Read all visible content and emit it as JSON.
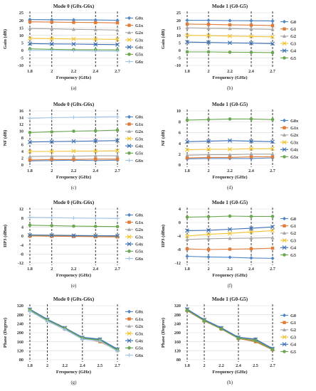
{
  "figure": {
    "colors": {
      "G0": "#4f86c6",
      "G1": "#e07b39",
      "G2": "#a5a5a5",
      "G3": "#f1c232",
      "G4": "#3c6eb4",
      "G5": "#6aa84f",
      "G6": "#9fc5e8"
    }
  },
  "chart_data": [
    {
      "type": "line",
      "panel": "(a)",
      "title": "Mode 0 (G0x-G6x)",
      "xlabel": "Frequency (GHz)",
      "ylabel": "Gain (dB)",
      "categories": [
        "1.8",
        "2",
        "2.2",
        "2.4",
        "2.7"
      ],
      "dashed_verticals": [
        "1.8",
        "2",
        "2.4",
        "2.7"
      ],
      "ylim": [
        -10,
        25
      ],
      "yticks": [
        -10,
        -5,
        0,
        5,
        10,
        15,
        20,
        25
      ],
      "series": [
        {
          "name": "G0x",
          "color": "#4f86c6",
          "marker": "diamond",
          "values": [
            20.5,
            20.4,
            20.3,
            20.2,
            20.0
          ]
        },
        {
          "name": "G1x",
          "color": "#e07b39",
          "marker": "square",
          "values": [
            19.0,
            18.8,
            18.6,
            18.5,
            18.3
          ]
        },
        {
          "name": "G2x",
          "color": "#a5a5a5",
          "marker": "triangle",
          "values": [
            14.5,
            14.3,
            14.0,
            13.8,
            13.5
          ]
        },
        {
          "name": "G3x",
          "color": "#f1c232",
          "marker": "x",
          "values": [
            8.0,
            7.8,
            7.6,
            7.5,
            7.3
          ]
        },
        {
          "name": "G4x",
          "color": "#3c6eb4",
          "marker": "x",
          "values": [
            4.5,
            4.3,
            4.2,
            4.0,
            3.8
          ]
        },
        {
          "name": "G5x",
          "color": "#6aa84f",
          "marker": "circle",
          "values": [
            1.0,
            0.7,
            0.5,
            0.4,
            0.3
          ]
        },
        {
          "name": "G6x",
          "color": "#9fc5e8",
          "marker": "plus",
          "values": [
            0.0,
            0.0,
            -0.3,
            -0.5,
            -0.6
          ]
        }
      ]
    },
    {
      "type": "line",
      "panel": "(b)",
      "title": "Mode 1 (G0-G5)",
      "xlabel": "Frequency (GHz)",
      "ylabel": "Gain (dB)",
      "categories": [
        "1.8",
        "2",
        "2.2",
        "2.4",
        "2.7"
      ],
      "dashed_verticals": [
        "1.8",
        "2",
        "2.4",
        "2.7"
      ],
      "ylim": [
        -10,
        25
      ],
      "yticks": [
        -10,
        -5,
        0,
        5,
        10,
        15,
        20,
        25
      ],
      "series": [
        {
          "name": "G0",
          "color": "#4f86c6",
          "marker": "diamond",
          "values": [
            20.0,
            20.0,
            19.8,
            19.7,
            19.5
          ]
        },
        {
          "name": "G1",
          "color": "#e07b39",
          "marker": "square",
          "values": [
            17.5,
            17.3,
            17.0,
            16.8,
            16.5
          ]
        },
        {
          "name": "G2",
          "color": "#a5a5a5",
          "marker": "triangle",
          "values": [
            15.0,
            14.7,
            14.5,
            14.2,
            14.0
          ]
        },
        {
          "name": "G3",
          "color": "#f1c232",
          "marker": "x",
          "values": [
            10.0,
            9.8,
            9.5,
            9.3,
            9.0
          ]
        },
        {
          "name": "G4",
          "color": "#3c6eb4",
          "marker": "x",
          "values": [
            5.5,
            5.3,
            5.0,
            4.8,
            4.5
          ]
        },
        {
          "name": "G5",
          "color": "#6aa84f",
          "marker": "circle",
          "values": [
            -1.0,
            -1.0,
            -1.2,
            -1.3,
            -1.5
          ]
        }
      ]
    },
    {
      "type": "line",
      "panel": "(c)",
      "title": "Mode 0 (G0x-G6x)",
      "xlabel": "Frequency (GHz)",
      "ylabel": "NF (dB)",
      "categories": [
        "1.8",
        "2",
        "2.2",
        "2.4",
        "2.7"
      ],
      "dashed_verticals": [
        "1.8",
        "2",
        "2.4",
        "2.7"
      ],
      "ylim": [
        0,
        16
      ],
      "yticks": [
        0,
        2,
        4,
        6,
        8,
        10,
        12,
        14,
        16
      ],
      "series": [
        {
          "name": "G0x",
          "color": "#4f86c6",
          "marker": "diamond",
          "values": [
            1.2,
            1.3,
            1.4,
            1.3,
            1.4
          ]
        },
        {
          "name": "G1x",
          "color": "#e07b39",
          "marker": "square",
          "values": [
            1.5,
            1.6,
            1.6,
            1.7,
            1.7
          ]
        },
        {
          "name": "G2x",
          "color": "#a5a5a5",
          "marker": "triangle",
          "values": [
            2.5,
            2.6,
            2.6,
            2.7,
            2.7
          ]
        },
        {
          "name": "G3x",
          "color": "#f1c232",
          "marker": "x",
          "values": [
            4.0,
            4.0,
            4.1,
            4.1,
            4.2
          ]
        },
        {
          "name": "G4x",
          "color": "#3c6eb4",
          "marker": "x",
          "values": [
            6.8,
            6.9,
            7.0,
            7.1,
            7.2
          ]
        },
        {
          "name": "G5x",
          "color": "#6aa84f",
          "marker": "circle",
          "values": [
            9.6,
            9.8,
            10.0,
            10.1,
            10.3
          ]
        },
        {
          "name": "G6x",
          "color": "#9fc5e8",
          "marker": "plus",
          "values": [
            13.8,
            14.0,
            14.1,
            14.2,
            14.3
          ]
        }
      ]
    },
    {
      "type": "line",
      "panel": "(d)",
      "title": "Mode 1 (G0-G5)",
      "xlabel": "Frequency (GHz)",
      "ylabel": "NF (dB)",
      "categories": [
        "1.8",
        "2",
        "2.2",
        "2.4",
        "2.7"
      ],
      "dashed_verticals": [
        "1.8",
        "2",
        "2.4",
        "2.7"
      ],
      "ylim": [
        0,
        10
      ],
      "yticks": [
        0,
        2,
        4,
        6,
        8,
        10
      ],
      "series": [
        {
          "name": "G0x",
          "color": "#4f86c6",
          "marker": "diamond",
          "values": [
            1.1,
            1.2,
            1.2,
            1.2,
            1.3
          ]
        },
        {
          "name": "G1x",
          "color": "#e07b39",
          "marker": "square",
          "values": [
            1.3,
            1.4,
            1.4,
            1.5,
            1.5
          ]
        },
        {
          "name": "G2x",
          "color": "#a5a5a5",
          "marker": "triangle",
          "values": [
            1.8,
            1.9,
            1.9,
            2.0,
            2.0
          ]
        },
        {
          "name": "G3x",
          "color": "#f1c232",
          "marker": "x",
          "values": [
            2.8,
            2.9,
            2.9,
            3.0,
            3.0
          ]
        },
        {
          "name": "G4x",
          "color": "#3c6eb4",
          "marker": "x",
          "values": [
            4.3,
            4.4,
            4.5,
            4.4,
            4.3
          ]
        },
        {
          "name": "G5x",
          "color": "#6aa84f",
          "marker": "circle",
          "values": [
            8.3,
            8.4,
            8.5,
            8.5,
            8.4
          ]
        }
      ]
    },
    {
      "type": "line",
      "panel": "(e)",
      "title": "Mode 0 (G0x-G6x)",
      "xlabel": "Frequency (GHz)",
      "ylabel": "IIP3 (dBm)",
      "categories": [
        "1.8",
        "2",
        "2.2",
        "2.4",
        "2.7"
      ],
      "dashed_verticals": [
        "1.8",
        "2",
        "2.4",
        "2.7"
      ],
      "ylim": [
        -12,
        12
      ],
      "yticks": [
        -12,
        -8,
        -4,
        0,
        4,
        8,
        12
      ],
      "series": [
        {
          "name": "G0x",
          "color": "#4f86c6",
          "marker": "diamond",
          "values": [
            0.2,
            0.1,
            0.0,
            -0.1,
            -0.2
          ]
        },
        {
          "name": "G1x",
          "color": "#e07b39",
          "marker": "square",
          "values": [
            0.0,
            -0.1,
            -0.2,
            -0.3,
            -0.4
          ]
        },
        {
          "name": "G2x",
          "color": "#a5a5a5",
          "marker": "triangle",
          "values": [
            0.5,
            0.4,
            0.3,
            0.2,
            0.1
          ]
        },
        {
          "name": "G3x",
          "color": "#f1c232",
          "marker": "x",
          "values": [
            0.3,
            0.2,
            0.2,
            0.1,
            0.0
          ]
        },
        {
          "name": "G4x",
          "color": "#3c6eb4",
          "marker": "x",
          "values": [
            0.4,
            0.3,
            0.2,
            0.1,
            0.1
          ]
        },
        {
          "name": "G5x",
          "color": "#6aa84f",
          "marker": "circle",
          "values": [
            4.8,
            4.6,
            4.4,
            4.3,
            4.2
          ]
        },
        {
          "name": "G6x",
          "color": "#9fc5e8",
          "marker": "plus",
          "values": [
            8.3,
            8.2,
            8.0,
            7.9,
            7.8
          ]
        }
      ]
    },
    {
      "type": "line",
      "panel": "(f)",
      "title": "Mode 1 (G0-G5)",
      "xlabel": "Frequency (GHz)",
      "ylabel": "IIP3 (dBm)",
      "categories": [
        "1.8",
        "2",
        "2.2",
        "2.4",
        "2.7"
      ],
      "dashed_verticals": [
        "1.8",
        "2",
        "2.4",
        "2.7"
      ],
      "ylim": [
        -12,
        4
      ],
      "yticks": [
        -12,
        -8,
        -4,
        0,
        4
      ],
      "series": [
        {
          "name": "G0",
          "color": "#4f86c6",
          "marker": "diamond",
          "values": [
            -10.0,
            -10.2,
            -10.3,
            -10.5,
            -10.6
          ]
        },
        {
          "name": "G1",
          "color": "#e07b39",
          "marker": "square",
          "values": [
            -7.8,
            -8.0,
            -7.9,
            -7.8,
            -7.6
          ]
        },
        {
          "name": "G2",
          "color": "#a5a5a5",
          "marker": "triangle",
          "values": [
            -5.0,
            -4.8,
            -4.7,
            -4.6,
            -4.5
          ]
        },
        {
          "name": "G3",
          "color": "#f1c232",
          "marker": "x",
          "values": [
            -4.0,
            -3.5,
            -3.2,
            -2.8,
            -2.4
          ]
        },
        {
          "name": "G4",
          "color": "#3c6eb4",
          "marker": "x",
          "values": [
            -2.4,
            -2.3,
            -2.0,
            -1.7,
            -1.3
          ]
        },
        {
          "name": "G5",
          "color": "#6aa84f",
          "marker": "circle",
          "values": [
            1.6,
            1.7,
            1.9,
            1.8,
            1.8
          ]
        }
      ]
    },
    {
      "type": "line",
      "panel": "(g)",
      "title": "Mode 0 (G0x-G6x)",
      "xlabel": "Frequency (GHz)",
      "ylabel": "Phase (Degree)",
      "categories": [
        "1.8",
        "2",
        "2.2",
        "2.4",
        "2.5",
        "2.7"
      ],
      "dashed_verticals": [
        "1.8",
        "2",
        "2.4",
        "2.7"
      ],
      "ylim": [
        80,
        320
      ],
      "yticks": [
        80,
        120,
        160,
        200,
        240,
        280,
        320
      ],
      "series": [
        {
          "name": "G0x",
          "color": "#4f86c6",
          "marker": "diamond",
          "values": [
            305,
            260,
            222,
            180,
            172,
            128
          ]
        },
        {
          "name": "G1x",
          "color": "#e07b39",
          "marker": "square",
          "values": [
            300,
            255,
            218,
            175,
            160,
            122
          ]
        },
        {
          "name": "G2x",
          "color": "#a5a5a5",
          "marker": "triangle",
          "values": [
            298,
            253,
            216,
            173,
            165,
            120
          ]
        },
        {
          "name": "G3x",
          "color": "#f1c232",
          "marker": "x",
          "values": [
            302,
            257,
            220,
            177,
            168,
            124
          ]
        },
        {
          "name": "G4x",
          "color": "#3c6eb4",
          "marker": "x",
          "values": [
            303,
            258,
            221,
            178,
            170,
            126
          ]
        },
        {
          "name": "G5x",
          "color": "#6aa84f",
          "marker": "circle",
          "values": [
            301,
            256,
            219,
            176,
            167,
            123
          ]
        },
        {
          "name": "G6x",
          "color": "#9fc5e8",
          "marker": "plus",
          "values": [
            296,
            251,
            214,
            171,
            163,
            118
          ]
        }
      ]
    },
    {
      "type": "line",
      "panel": "(h)",
      "title": "Mode 1 (G0-G5)",
      "xlabel": "Frequency (GHz)",
      "ylabel": "Phase (Degree)",
      "categories": [
        "1.8",
        "2",
        "2.2",
        "2.4",
        "2.5",
        "2.7"
      ],
      "dashed_verticals": [
        "1.8",
        "2",
        "2.4",
        "2.7"
      ],
      "ylim": [
        80,
        320
      ],
      "yticks": [
        80,
        120,
        160,
        200,
        240,
        280,
        320
      ],
      "series": [
        {
          "name": "G0",
          "color": "#4f86c6",
          "marker": "diamond",
          "values": [
            305,
            258,
            222,
            180,
            172,
            130
          ]
        },
        {
          "name": "G1",
          "color": "#e07b39",
          "marker": "square",
          "values": [
            298,
            252,
            216,
            174,
            160,
            124
          ]
        },
        {
          "name": "G2",
          "color": "#a5a5a5",
          "marker": "triangle",
          "values": [
            300,
            254,
            218,
            176,
            165,
            126
          ]
        },
        {
          "name": "G3",
          "color": "#f1c232",
          "marker": "x",
          "values": [
            302,
            256,
            220,
            178,
            168,
            128
          ]
        },
        {
          "name": "G4",
          "color": "#3c6eb4",
          "marker": "x",
          "values": [
            304,
            257,
            221,
            179,
            170,
            129
          ]
        },
        {
          "name": "G5",
          "color": "#6aa84f",
          "marker": "circle",
          "values": [
            299,
            253,
            217,
            175,
            164,
            125
          ]
        }
      ]
    }
  ]
}
